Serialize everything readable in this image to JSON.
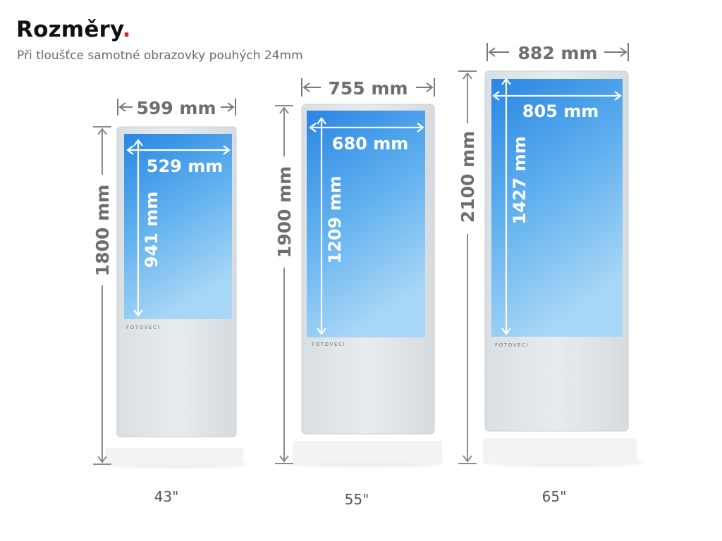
{
  "header": {
    "title": "Rozměry",
    "title_dot": ".",
    "subtitle": "Při tloušťce samotné obrazovky pouhých 24mm"
  },
  "colors": {
    "dot": "#d9262b",
    "dimension_text": "#6e6e6e",
    "screen_top": "#2f8fe6",
    "screen_bottom": "#9fd0f5",
    "kiosk_body": "#e4e9ec"
  },
  "units": [
    {
      "size": "43\"",
      "outer_width": "599 mm",
      "outer_height": "1800 mm",
      "screen_width": "529 mm",
      "screen_height": "941 mm",
      "brand": "FOTOVECÍ"
    },
    {
      "size": "55\"",
      "outer_width": "755 mm",
      "outer_height": "1900 mm",
      "screen_width": "680 mm",
      "screen_height": "1209 mm",
      "brand": "FOTOVECÍ"
    },
    {
      "size": "65\"",
      "outer_width": "882 mm",
      "outer_height": "2100 mm",
      "screen_width": "805 mm",
      "screen_height": "1427 mm",
      "brand": "FOTOVECÍ"
    }
  ]
}
